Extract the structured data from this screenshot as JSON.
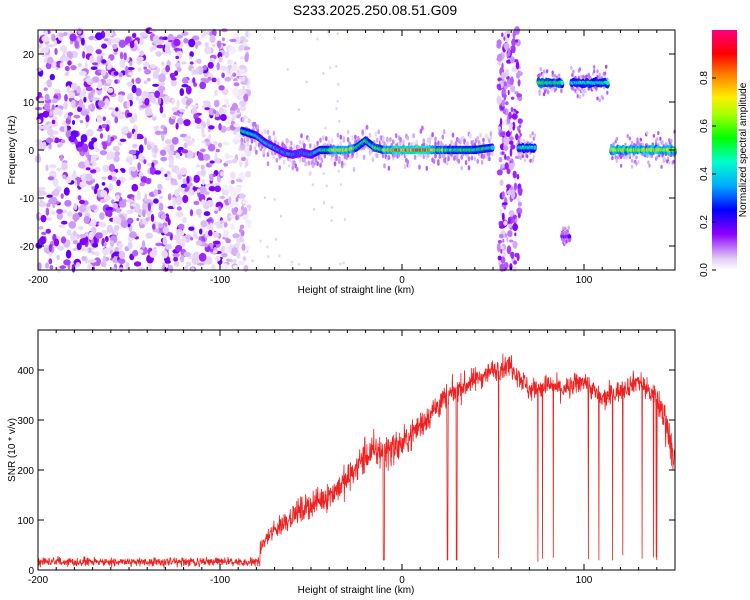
{
  "title": "S233.2025.250.08.51.G09",
  "colors": {
    "snr_line": "#ee2020",
    "axis": "#000000",
    "background": "#ffffff"
  },
  "chart_data": [
    {
      "id": "spectrogram",
      "type": "heatmap",
      "xlabel": "Height of straight line (km)",
      "ylabel": "Frequency (Hz)",
      "xlim": [
        -200,
        150
      ],
      "ylim": [
        -25,
        25
      ],
      "xticks": [
        -200,
        -100,
        0,
        100
      ],
      "yticks": [
        -20,
        -10,
        0,
        10,
        20
      ],
      "colorbar": {
        "label": "Normalized spectral amplitude",
        "range": [
          0,
          1
        ],
        "ticks": [
          0.0,
          0.2,
          0.4,
          0.6,
          0.8
        ]
      },
      "noise_region_km": [
        -200,
        -88
      ],
      "signal_track": {
        "x": [
          -88,
          -80,
          -75,
          -70,
          -65,
          -60,
          -55,
          -50,
          -45,
          -40,
          -35,
          -30,
          -25,
          -20,
          -15,
          -10,
          -5,
          0,
          10,
          20,
          30,
          40,
          50
        ],
        "freq": [
          4,
          3,
          1.5,
          0.5,
          -0.5,
          -1,
          -0.5,
          -1,
          0,
          0,
          0,
          0,
          0.5,
          2,
          0.5,
          0,
          0,
          0,
          0,
          0,
          0,
          0,
          0.5
        ],
        "amplitude": [
          0.55,
          0.5,
          0.45,
          0.4,
          0.35,
          0.4,
          0.35,
          0.4,
          0.5,
          0.6,
          0.8,
          0.85,
          0.6,
          0.55,
          0.6,
          0.7,
          0.85,
          0.95,
          0.95,
          0.7,
          0.55,
          0.6,
          0.5
        ]
      },
      "segments": [
        {
          "x": [
            53,
            65
          ],
          "freq_span": [
            -25,
            25
          ],
          "kind": "noise-band"
        },
        {
          "x": [
            64,
            73
          ],
          "freq": 0.5,
          "amplitude": 0.5
        },
        {
          "x": [
            75,
            88
          ],
          "freq": 14,
          "amplitude": 0.55
        },
        {
          "x": [
            93,
            113
          ],
          "freq": 14,
          "amplitude": 0.5
        },
        {
          "x": [
            88,
            92
          ],
          "freq": -18,
          "amplitude": 0.2
        },
        {
          "x": [
            115,
            150
          ],
          "freq": 0,
          "amplitude": 0.75
        }
      ]
    },
    {
      "id": "snr",
      "type": "line",
      "xlabel": "Height of straight line (km)",
      "ylabel": "SNR (10 * v/v)",
      "xlim": [
        -200,
        150
      ],
      "ylim": [
        0,
        480
      ],
      "xticks": [
        -200,
        -100,
        0,
        100
      ],
      "yticks": [
        0,
        100,
        200,
        300,
        400
      ],
      "series": [
        {
          "name": "SNR",
          "x": [
            -200,
            -180,
            -160,
            -140,
            -120,
            -100,
            -80,
            -75,
            -70,
            -60,
            -50,
            -40,
            -30,
            -20,
            -10,
            0,
            10,
            20,
            30,
            40,
            50,
            60,
            70,
            80,
            90,
            100,
            110,
            120,
            130,
            140,
            145,
            150
          ],
          "mean": [
            18,
            18,
            18,
            18,
            18,
            20,
            30,
            60,
            80,
            110,
            130,
            150,
            180,
            230,
            240,
            250,
            290,
            330,
            360,
            380,
            400,
            410,
            360,
            370,
            360,
            380,
            340,
            360,
            380,
            340,
            300,
            220
          ],
          "noise": [
            10,
            10,
            10,
            10,
            10,
            12,
            20,
            30,
            40,
            45,
            50,
            55,
            60,
            70,
            70,
            60,
            55,
            55,
            50,
            45,
            40,
            45,
            45,
            40,
            45,
            40,
            45,
            40,
            40,
            50,
            80,
            80
          ]
        }
      ]
    }
  ]
}
